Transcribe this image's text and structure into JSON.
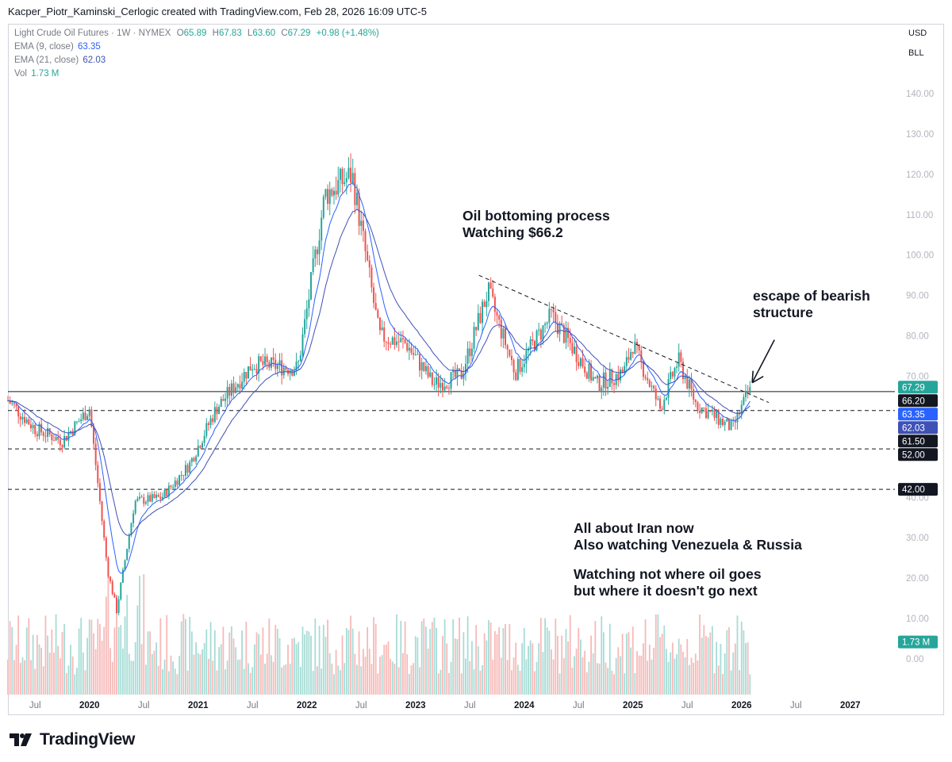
{
  "header": {
    "caption": "Kacper_Piotr_Kaminski_Cerlogic created with TradingView.com, Feb 28, 2026 16:09 UTC-5"
  },
  "legend": {
    "symbol": "Light Crude Oil Futures · 1W · NYMEX",
    "ohlc": [
      {
        "key": "O",
        "value": "65.89"
      },
      {
        "key": "H",
        "value": "67.83"
      },
      {
        "key": "L",
        "value": "63.60"
      },
      {
        "key": "C",
        "value": "67.29"
      }
    ],
    "change": "+0.98 (+1.48%)",
    "ema9_label": "EMA (9, close)",
    "ema9_value": "63.35",
    "ema21_label": "EMA (21, close)",
    "ema21_value": "62.03",
    "vol_label": "Vol",
    "vol_value": "1.73 M"
  },
  "units": {
    "currency": "USD",
    "unit": "BLL"
  },
  "annotations": {
    "note1_line1": "Oil bottoming process",
    "note1_line2": "Watching $66.2",
    "note2_line1": "escape of bearish",
    "note2_line2": "structure",
    "note3_line1": "All about Iran now",
    "note3_line2": "Also watching Venezuela & Russia",
    "note4_line1": "Watching not where oil goes",
    "note4_line2": "but where it doesn't go next"
  },
  "branding": {
    "logo_text": "TradingView"
  },
  "colors": {
    "up": "#26a69a",
    "down": "#ef5350",
    "ema9": "#2962ff",
    "ema21": "#3f51b5",
    "vol_badge": "#26a69a"
  },
  "chart_data": {
    "type": "candlestick",
    "title": "Light Crude Oil Futures · 1W · NYMEX",
    "y_axis": {
      "ticks": [
        "140.00",
        "130.00",
        "120.00",
        "110.00",
        "100.00",
        "90.00",
        "80.00",
        "70.00",
        "60.00",
        "50.00",
        "40.00",
        "30.00",
        "20.00",
        "10.00",
        "0.00"
      ],
      "range": [
        0,
        140
      ]
    },
    "x_axis": {
      "ticks": [
        "Jul",
        "2020",
        "Jul",
        "2021",
        "Jul",
        "2022",
        "Jul",
        "2023",
        "Jul",
        "2024",
        "Jul",
        "2025",
        "Jul",
        "2026",
        "Jul",
        "2027"
      ]
    },
    "horizontal_levels": [
      {
        "price": 66.2,
        "style": "solid",
        "label": "66.20"
      },
      {
        "price": 61.5,
        "style": "dashed",
        "label": "61.50"
      },
      {
        "price": 52.0,
        "style": "dashed",
        "label": "52.00"
      },
      {
        "price": 42.0,
        "style": "dashed",
        "label": "42.00"
      }
    ],
    "price_badges": [
      {
        "label": "67.29",
        "price": 67.29,
        "kind": "last"
      },
      {
        "label": "63.35",
        "price": 63.35,
        "kind": "ema9"
      },
      {
        "label": "62.03",
        "price": 62.03,
        "kind": "ema21"
      },
      {
        "label": "1.73 M",
        "price": 4.2,
        "kind": "volume"
      }
    ],
    "trendline": {
      "from": [
        "2023-08",
        95
      ],
      "to": [
        "2026-04",
        63.5
      ],
      "style": "dashed"
    },
    "arrow": {
      "points_to": [
        "2026-02",
        68
      ]
    },
    "key_closes": [
      [
        "2019-04",
        64
      ],
      [
        "2019-07",
        57
      ],
      [
        "2019-10",
        54
      ],
      [
        "2020-01",
        62
      ],
      [
        "2020-03",
        22
      ],
      [
        "2020-04",
        12
      ],
      [
        "2020-06",
        39
      ],
      [
        "2020-09",
        40
      ],
      [
        "2020-12",
        48
      ],
      [
        "2021-03",
        62
      ],
      [
        "2021-07",
        73
      ],
      [
        "2021-12",
        72
      ],
      [
        "2022-03",
        115
      ],
      [
        "2022-06",
        120
      ],
      [
        "2022-09",
        80
      ],
      [
        "2022-12",
        78
      ],
      [
        "2023-03",
        68
      ],
      [
        "2023-06",
        70
      ],
      [
        "2023-09",
        91
      ],
      [
        "2023-12",
        71
      ],
      [
        "2024-04",
        85
      ],
      [
        "2024-09",
        68
      ],
      [
        "2024-12",
        71
      ],
      [
        "2025-01",
        78
      ],
      [
        "2025-04",
        62
      ],
      [
        "2025-06",
        74
      ],
      [
        "2025-08",
        63
      ],
      [
        "2025-12",
        57
      ],
      [
        "2026-02",
        67.29
      ]
    ]
  }
}
